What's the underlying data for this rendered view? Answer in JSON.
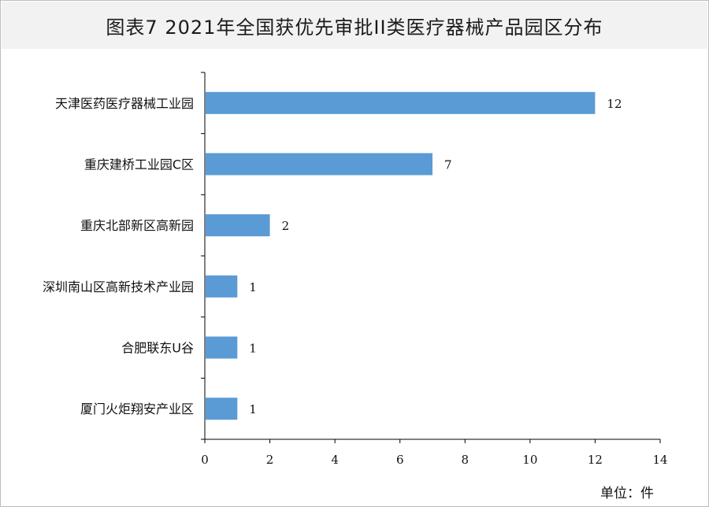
{
  "chart_data": {
    "type": "bar",
    "orientation": "horizontal",
    "title": "图表7  2021年全国获优先审批II类医疗器械产品园区分布",
    "categories": [
      "天津医药医疗器械工业园",
      "重庆建桥工业园C区",
      "重庆北部新区高新园",
      "深圳南山区高新技术产业园",
      "合肥联东U谷",
      "厦门火炬翔安产业区"
    ],
    "values": [
      12,
      7,
      2,
      1,
      1,
      1
    ],
    "xlim": [
      0,
      14
    ],
    "xticks": [
      "0",
      "2",
      "4",
      "6",
      "8",
      "10",
      "12",
      "14"
    ],
    "unit_label": "单位：件",
    "bar_color": "#5b9bd5",
    "grid": false,
    "legend": "none"
  }
}
